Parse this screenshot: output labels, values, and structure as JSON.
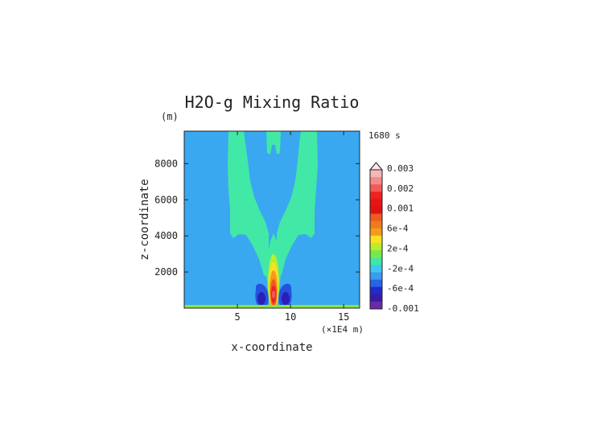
{
  "chart_data": {
    "type": "heatmap",
    "title": "H2O-g Mixing Ratio",
    "time_label": "1680 s",
    "xlabel": "x-coordinate",
    "x_unit_label": "(×1E4 m)",
    "ylabel": "z-coordinate",
    "y_unit_label": "(m)",
    "xlim": [
      0,
      16.5
    ],
    "ylim": [
      0,
      9800
    ],
    "x_ticks": [
      5,
      10,
      15
    ],
    "y_ticks": [
      2000,
      4000,
      6000,
      8000
    ],
    "x_tick_labels": [
      "5",
      "10",
      "15"
    ],
    "y_tick_labels": [
      "2000",
      "4000",
      "6000",
      "8000"
    ],
    "background_value_label": "-2e-4",
    "colorbar": {
      "labels": [
        "0.003",
        "0.002",
        "0.001",
        "6e-4",
        "2e-4",
        "-2e-4",
        "-6e-4",
        "-0.001"
      ],
      "colors": [
        "#f7b7b7",
        "#f58a8a",
        "#f25a5a",
        "#ee2222",
        "#e81414",
        "#e11111",
        "#ee5a22",
        "#f07a1e",
        "#f59a1a",
        "#fbe024",
        "#b8ee2a",
        "#7ae84a",
        "#3ee8a8",
        "#3cc8f0",
        "#3a9cf0",
        "#2a62e8",
        "#1e2cc8",
        "#3a1aa8",
        "#6a2aa8"
      ],
      "extend": "max"
    },
    "features": [
      {
        "name": "moist-plume-left",
        "value_label": "2e-4"
      },
      {
        "name": "moist-plume-right",
        "value_label": "2e-4"
      },
      {
        "name": "central-updraft-core",
        "value_label": "0.003"
      },
      {
        "name": "dry-lobe-left",
        "value_label": "-6e-4"
      },
      {
        "name": "dry-lobe-right",
        "value_label": "-6e-4"
      }
    ],
    "colors": {
      "background": "#3aa8f0",
      "moist": "#42e8a6",
      "dry": "#2552e0",
      "very_dry": "#2a1fb8",
      "core": "#ee2222",
      "surface": "#86e640"
    }
  }
}
